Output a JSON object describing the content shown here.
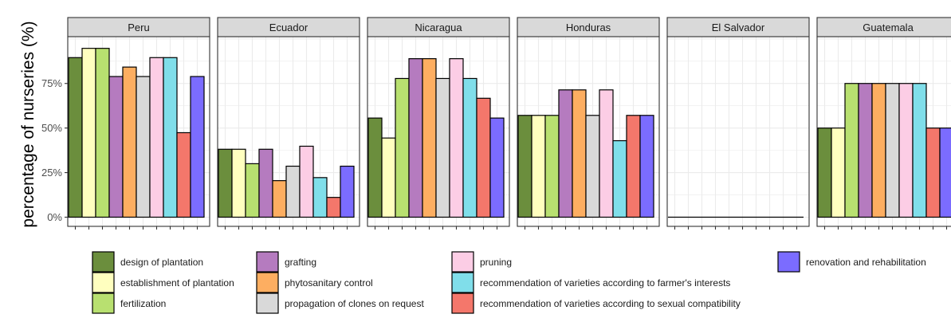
{
  "chart_data": {
    "type": "bar",
    "ylabel": "percentage of nurseries (%)",
    "xlabel": "",
    "ylim": [
      0,
      100
    ],
    "y_ticks": [
      0,
      25,
      50,
      75
    ],
    "y_tick_labels": [
      "0%",
      "25%",
      "50%",
      "75%"
    ],
    "grid": true,
    "legend_position": "bottom",
    "categories": [
      "design of plantation",
      "establishment of plantation",
      "fertilization",
      "grafting",
      "phytosanitary control",
      "propagation of clones on request",
      "pruning",
      "recommendation of varieties according to farmer's interests",
      "recommendation of varieties according to sexual compatibility",
      "renovation and rehabilitation"
    ],
    "colors": [
      "#6b8e3d",
      "#ffffbf",
      "#b8e070",
      "#b57bbf",
      "#fdae61",
      "#d9d9d9",
      "#fccde5",
      "#80deea",
      "#f4776b",
      "#7b6cff"
    ],
    "panels": [
      {
        "name": "Peru",
        "values": [
          89.5,
          94.7,
          94.7,
          78.9,
          84.2,
          78.9,
          89.5,
          89.5,
          47.4,
          78.9
        ]
      },
      {
        "name": "Ecuador",
        "values": [
          38.1,
          38.1,
          30.0,
          38.1,
          20.5,
          28.6,
          39.8,
          22.2,
          11.1,
          28.6
        ]
      },
      {
        "name": "Nicaragua",
        "values": [
          55.6,
          44.4,
          77.8,
          88.9,
          88.9,
          77.8,
          88.9,
          77.8,
          66.7,
          55.6
        ]
      },
      {
        "name": "Honduras",
        "values": [
          57.1,
          57.1,
          57.1,
          71.4,
          71.4,
          57.1,
          71.4,
          42.9,
          57.1,
          57.1
        ]
      },
      {
        "name": "El Salvador",
        "values": [
          0,
          0,
          0,
          0,
          0,
          0,
          0,
          0,
          0,
          0
        ]
      },
      {
        "name": "Guatemala",
        "values": [
          50,
          50,
          75,
          75,
          75,
          75,
          75,
          75,
          50,
          50
        ]
      }
    ]
  }
}
